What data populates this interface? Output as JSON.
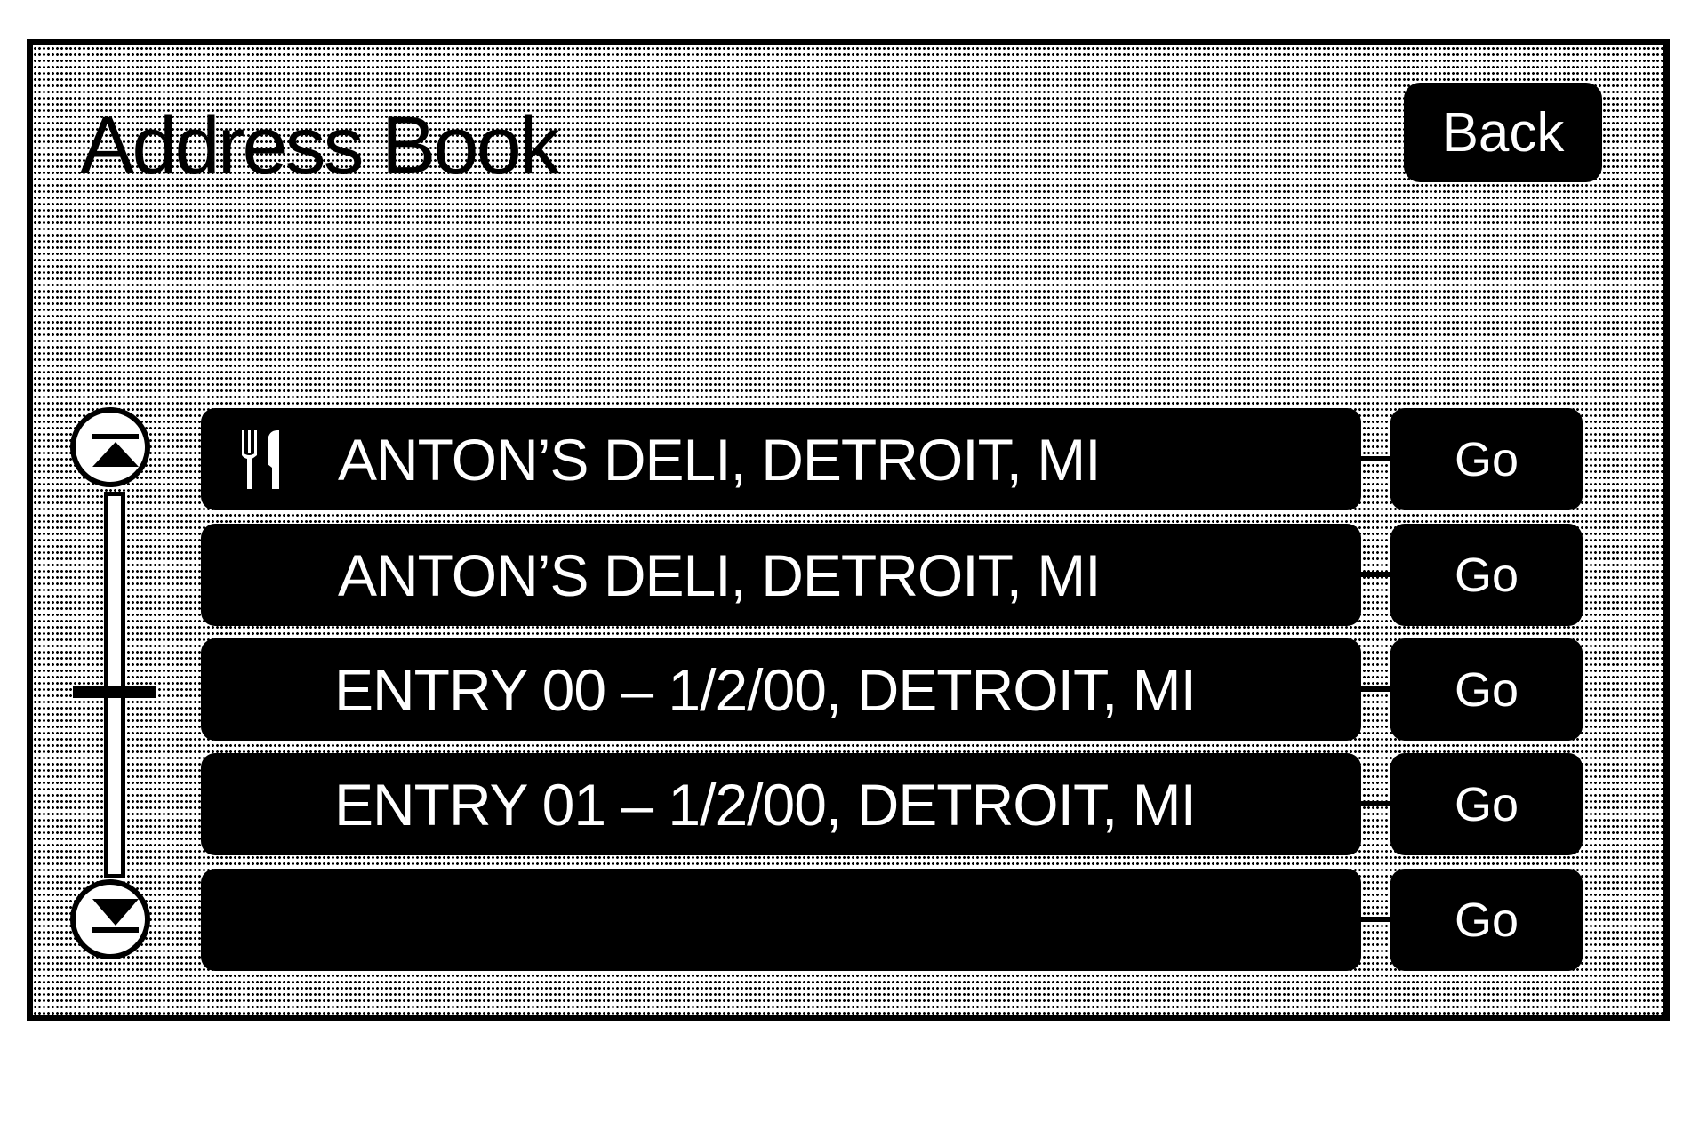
{
  "header": {
    "title": "Address Book",
    "back_label": "Back"
  },
  "list": {
    "rows": [
      {
        "label": "ANTON’S DELI, DETROIT, MI",
        "icon": "restaurant-icon",
        "go_label": "Go"
      },
      {
        "label": "ANTON’S DELI, DETROIT, MI",
        "go_label": "Go"
      },
      {
        "label": "ENTRY 00 – 1/2/00, DETROIT, MI",
        "go_label": "Go"
      },
      {
        "label": "ENTRY 01 – 1/2/00, DETROIT, MI",
        "go_label": "Go"
      },
      {
        "label": "",
        "go_label": "Go"
      }
    ]
  },
  "scrollbar": {
    "up_icon": "scroll-top-icon",
    "down_icon": "scroll-bottom-icon",
    "position_percent": 50
  },
  "colors": {
    "foreground": "#000000",
    "background": "#ffffff"
  }
}
